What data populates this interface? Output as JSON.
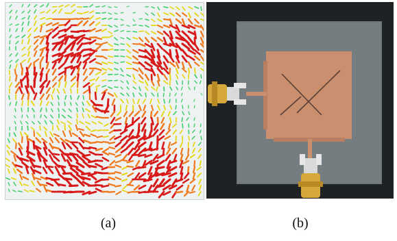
{
  "panels": [
    {
      "caption": "(a)",
      "image": "surface-current-vector-field",
      "colors": {
        "high": "#d91a1a",
        "mid": "#f07a1e",
        "low": "#e6d81e",
        "min": "#3fcf6a",
        "background": "#eef2f2"
      }
    },
    {
      "caption": "(b)",
      "image": "fabricated-patch-antenna-photo",
      "colors": {
        "background": "#1f2224",
        "substrate": "#6f7679",
        "patch": "#c98f6e",
        "connector": "#d4a83a"
      }
    }
  ]
}
